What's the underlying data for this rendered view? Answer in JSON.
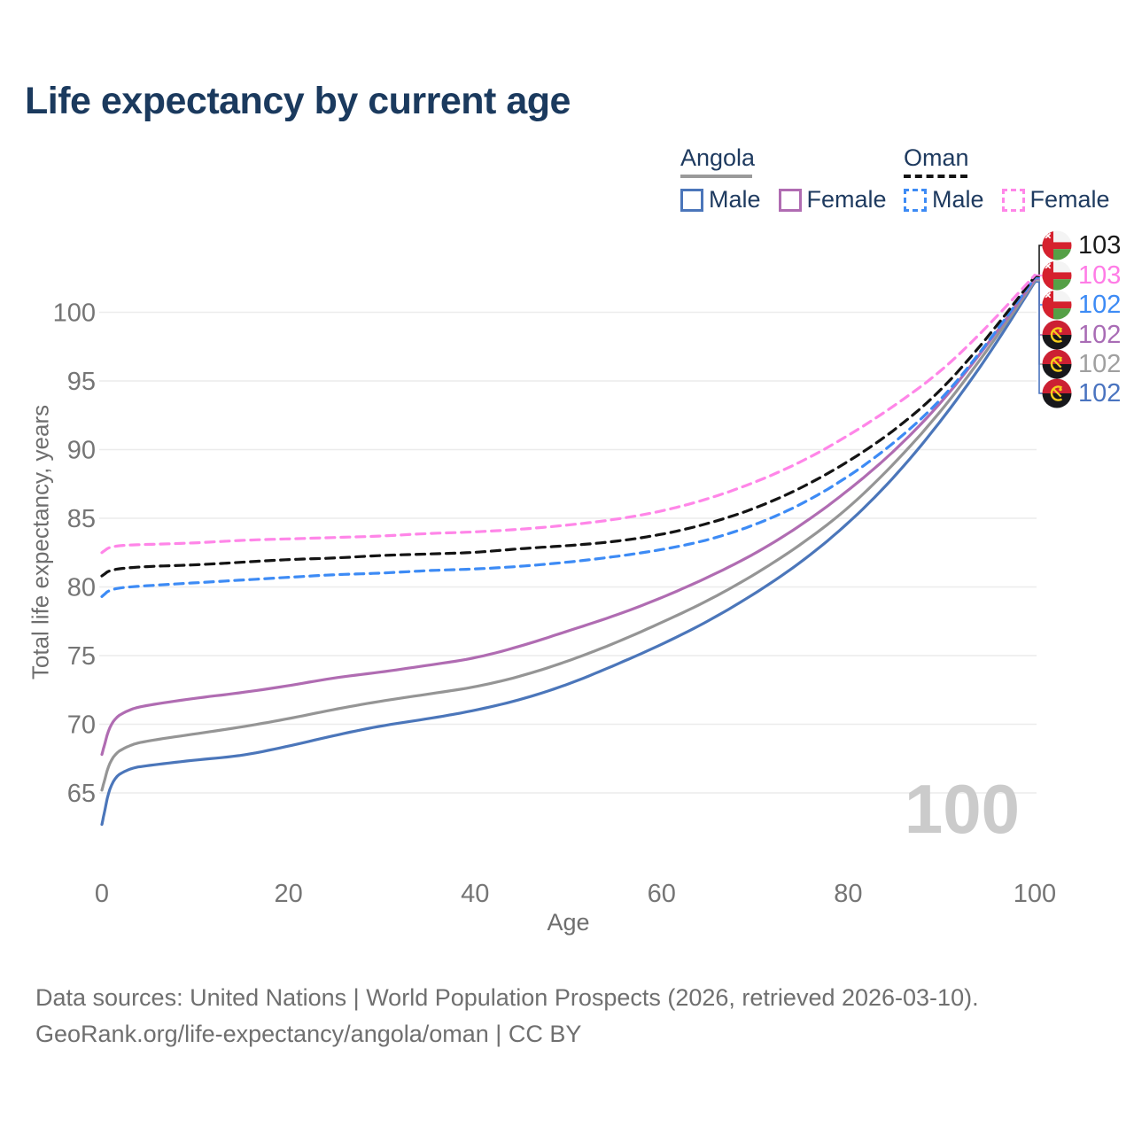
{
  "title": "Life expectancy by current age",
  "legend": {
    "groups": [
      {
        "country": "Angola",
        "underline_style": "solid",
        "underline_color": "#9a9a9a",
        "underline_width": 81,
        "items": [
          {
            "label": "Male",
            "color": "#4b76ba",
            "dashed": false
          },
          {
            "label": "Female",
            "color": "#b06cb2",
            "dashed": false
          }
        ]
      },
      {
        "country": "Oman",
        "underline_style": "dashed",
        "underline_color": "#141414",
        "underline_width": 72,
        "items": [
          {
            "label": "Male",
            "color": "#3d8bf5",
            "dashed": true
          },
          {
            "label": "Female",
            "color": "#ff86e8",
            "dashed": true
          }
        ]
      }
    ]
  },
  "watermark": "100",
  "end_labels": [
    {
      "value": "103",
      "color": "#1a1a1a",
      "flag": "oman",
      "series_key": "oman_total"
    },
    {
      "value": "103",
      "color": "#ff7ce6",
      "flag": "oman",
      "series_key": "oman_female"
    },
    {
      "value": "102",
      "color": "#3d8bf5",
      "flag": "oman",
      "series_key": "oman_male"
    },
    {
      "value": "102",
      "color": "#a96cb5",
      "flag": "angola",
      "series_key": "angola_female"
    },
    {
      "value": "102",
      "color": "#a0a0a0",
      "flag": "angola",
      "series_key": "angola_total"
    },
    {
      "value": "102",
      "color": "#4a74c0",
      "flag": "angola",
      "series_key": "angola_male"
    }
  ],
  "footer": {
    "line1": "Data sources: United Nations | World Population Prospects (2026, retrieved 2026-03-10).",
    "line2": "GeoRank.org/life-expectancy/angola/oman | CC BY"
  },
  "chart_data": {
    "type": "line",
    "title": "Life expectancy by current age",
    "xlabel": "Age",
    "ylabel": "Total life expectancy, years",
    "xlim": [
      0,
      100
    ],
    "ylim": [
      62,
      103
    ],
    "xticks": [
      0,
      20,
      40,
      60,
      80,
      100
    ],
    "yticks": [
      65,
      70,
      75,
      80,
      85,
      90,
      95,
      100
    ],
    "grid": true,
    "legend_position": "top-right",
    "series": [
      {
        "key": "angola_male",
        "name": "Angola Male",
        "color": "#4b76ba",
        "dashed": false,
        "points": [
          [
            0,
            62.7
          ],
          [
            1,
            66.0
          ],
          [
            3,
            66.8
          ],
          [
            5,
            67.0
          ],
          [
            10,
            67.4
          ],
          [
            15,
            67.7
          ],
          [
            20,
            68.4
          ],
          [
            25,
            69.2
          ],
          [
            30,
            69.9
          ],
          [
            35,
            70.4
          ],
          [
            40,
            71.0
          ],
          [
            45,
            71.8
          ],
          [
            50,
            72.9
          ],
          [
            55,
            74.3
          ],
          [
            60,
            75.8
          ],
          [
            65,
            77.5
          ],
          [
            70,
            79.5
          ],
          [
            75,
            81.8
          ],
          [
            80,
            84.6
          ],
          [
            85,
            88.0
          ],
          [
            90,
            92.1
          ],
          [
            95,
            96.8
          ],
          [
            100,
            102.2
          ]
        ]
      },
      {
        "key": "angola_total",
        "name": "Angola",
        "color": "#959595",
        "dashed": false,
        "points": [
          [
            0,
            65.2
          ],
          [
            1,
            67.7
          ],
          [
            3,
            68.5
          ],
          [
            5,
            68.8
          ],
          [
            10,
            69.3
          ],
          [
            15,
            69.8
          ],
          [
            20,
            70.4
          ],
          [
            25,
            71.1
          ],
          [
            30,
            71.7
          ],
          [
            35,
            72.2
          ],
          [
            40,
            72.7
          ],
          [
            45,
            73.5
          ],
          [
            50,
            74.6
          ],
          [
            55,
            75.9
          ],
          [
            60,
            77.4
          ],
          [
            65,
            79.0
          ],
          [
            70,
            80.9
          ],
          [
            75,
            83.1
          ],
          [
            80,
            85.7
          ],
          [
            85,
            89.0
          ],
          [
            90,
            92.8
          ],
          [
            95,
            97.3
          ],
          [
            100,
            102.3
          ]
        ]
      },
      {
        "key": "angola_female",
        "name": "Angola Female",
        "color": "#b06cb2",
        "dashed": false,
        "points": [
          [
            0,
            67.8
          ],
          [
            1,
            70.3
          ],
          [
            3,
            71.1
          ],
          [
            5,
            71.4
          ],
          [
            10,
            71.9
          ],
          [
            15,
            72.3
          ],
          [
            20,
            72.8
          ],
          [
            25,
            73.4
          ],
          [
            30,
            73.8
          ],
          [
            35,
            74.3
          ],
          [
            40,
            74.8
          ],
          [
            45,
            75.7
          ],
          [
            50,
            76.8
          ],
          [
            55,
            77.9
          ],
          [
            60,
            79.2
          ],
          [
            65,
            80.7
          ],
          [
            70,
            82.4
          ],
          [
            75,
            84.5
          ],
          [
            80,
            87.0
          ],
          [
            85,
            89.9
          ],
          [
            90,
            93.4
          ],
          [
            95,
            97.7
          ],
          [
            100,
            102.4
          ]
        ]
      },
      {
        "key": "oman_male",
        "name": "Oman Male",
        "color": "#3d8bf5",
        "dashed": true,
        "points": [
          [
            0,
            79.3
          ],
          [
            1,
            79.9
          ],
          [
            5,
            80.1
          ],
          [
            10,
            80.3
          ],
          [
            15,
            80.5
          ],
          [
            20,
            80.7
          ],
          [
            25,
            80.9
          ],
          [
            30,
            81.0
          ],
          [
            35,
            81.2
          ],
          [
            40,
            81.3
          ],
          [
            45,
            81.5
          ],
          [
            50,
            81.8
          ],
          [
            55,
            82.2
          ],
          [
            60,
            82.7
          ],
          [
            65,
            83.4
          ],
          [
            70,
            84.5
          ],
          [
            75,
            86.0
          ],
          [
            80,
            88.0
          ],
          [
            85,
            90.5
          ],
          [
            90,
            93.6
          ],
          [
            95,
            97.8
          ],
          [
            100,
            102.5
          ]
        ]
      },
      {
        "key": "oman_total",
        "name": "Oman",
        "color": "#141414",
        "dashed": true,
        "points": [
          [
            0,
            80.8
          ],
          [
            1,
            81.3
          ],
          [
            5,
            81.5
          ],
          [
            10,
            81.6
          ],
          [
            15,
            81.8
          ],
          [
            20,
            82.0
          ],
          [
            25,
            82.1
          ],
          [
            30,
            82.3
          ],
          [
            35,
            82.4
          ],
          [
            40,
            82.5
          ],
          [
            45,
            82.8
          ],
          [
            50,
            83.0
          ],
          [
            55,
            83.3
          ],
          [
            60,
            83.8
          ],
          [
            65,
            84.6
          ],
          [
            70,
            85.7
          ],
          [
            75,
            87.2
          ],
          [
            80,
            89.1
          ],
          [
            85,
            91.4
          ],
          [
            90,
            94.3
          ],
          [
            95,
            98.2
          ],
          [
            100,
            102.6
          ]
        ]
      },
      {
        "key": "oman_female",
        "name": "Oman Female",
        "color": "#ff86e8",
        "dashed": true,
        "points": [
          [
            0,
            82.5
          ],
          [
            1,
            83.0
          ],
          [
            5,
            83.1
          ],
          [
            10,
            83.2
          ],
          [
            15,
            83.4
          ],
          [
            20,
            83.5
          ],
          [
            25,
            83.6
          ],
          [
            30,
            83.7
          ],
          [
            35,
            83.9
          ],
          [
            40,
            84.0
          ],
          [
            45,
            84.2
          ],
          [
            50,
            84.5
          ],
          [
            55,
            84.9
          ],
          [
            60,
            85.5
          ],
          [
            65,
            86.4
          ],
          [
            70,
            87.6
          ],
          [
            75,
            89.1
          ],
          [
            80,
            91.0
          ],
          [
            85,
            93.2
          ],
          [
            90,
            95.7
          ],
          [
            95,
            99.0
          ],
          [
            100,
            102.7
          ]
        ]
      }
    ]
  }
}
